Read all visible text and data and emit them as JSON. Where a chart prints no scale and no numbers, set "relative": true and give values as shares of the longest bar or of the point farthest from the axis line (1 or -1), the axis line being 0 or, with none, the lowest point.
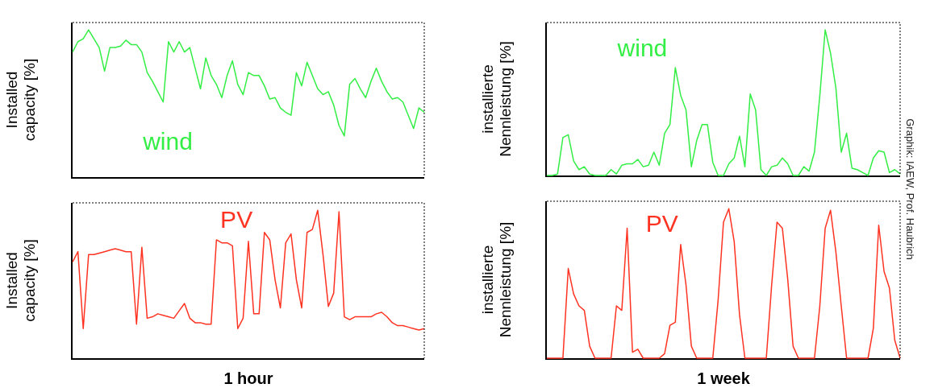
{
  "chart_data": [
    {
      "type": "line",
      "ylabel": "Installed\ncapacity [%]",
      "relative": true,
      "categories": [
        null,
        null,
        null,
        null,
        null,
        null,
        null,
        null,
        null,
        null,
        null,
        null,
        null,
        null,
        null,
        null,
        null,
        null,
        null,
        null,
        null,
        null,
        null,
        null,
        null,
        null,
        null,
        null,
        null,
        null,
        null,
        null,
        null,
        null,
        null,
        null,
        null,
        null,
        null,
        null,
        null,
        null,
        null,
        null,
        null,
        null,
        null,
        null,
        null,
        null,
        null,
        null,
        null,
        null,
        null,
        null,
        null,
        null,
        null,
        null,
        null,
        null,
        null,
        null,
        null,
        null,
        null
      ],
      "series": [
        {
          "name": "wind",
          "color": "#33ee44",
          "values": [
            0.85,
            0.92,
            0.94,
            1,
            0.94,
            0.88,
            0.72,
            0.88,
            0.88,
            0.89,
            0.93,
            0.9,
            0.9,
            0.85,
            0.71,
            0.65,
            0.58,
            0.51,
            0.92,
            0.85,
            0.92,
            0.85,
            0.88,
            0.74,
            0.6,
            0.81,
            0.69,
            0.63,
            0.54,
            0.69,
            0.79,
            0.63,
            0.56,
            0.71,
            0.69,
            0.69,
            0.62,
            0.53,
            0.54,
            0.47,
            0.44,
            0.42,
            0.71,
            0.62,
            0.78,
            0.69,
            0.6,
            0.56,
            0.58,
            0.49,
            0.35,
            0.28,
            0.63,
            0.67,
            0.6,
            0.54,
            0.65,
            0.74,
            0.65,
            0.58,
            0.53,
            0.54,
            0.51,
            0.42,
            0.33,
            0.47,
            0.44
          ]
        }
      ]
    },
    {
      "type": "line",
      "ylabel": "installierte\nNennleistung [%]",
      "relative": true,
      "annotations": [
        "Graphik: IAEW, Prof. Haubrich"
      ],
      "categories": [
        null,
        null,
        null,
        null,
        null,
        null,
        null,
        null,
        null,
        null,
        null,
        null,
        null,
        null,
        null,
        null,
        null,
        null,
        null,
        null,
        null,
        null,
        null,
        null,
        null,
        null,
        null,
        null,
        null,
        null,
        null,
        null,
        null,
        null,
        null,
        null,
        null,
        null,
        null,
        null,
        null,
        null,
        null,
        null,
        null,
        null,
        null,
        null,
        null,
        null,
        null,
        null,
        null,
        null,
        null,
        null,
        null,
        null,
        null,
        null,
        null,
        null,
        null,
        null,
        null,
        null,
        null
      ],
      "series": [
        {
          "name": "wind",
          "color": "#33ee44",
          "values": [
            0,
            0,
            0.01,
            0.26,
            0.28,
            0.1,
            0.04,
            0.06,
            0.01,
            0,
            0,
            0,
            0.04,
            0.01,
            0.07,
            0.08,
            0.08,
            0.11,
            0.06,
            0.07,
            0.16,
            0.07,
            0.29,
            0.35,
            0.74,
            0.55,
            0.45,
            0.06,
            0.24,
            0.35,
            0.35,
            0.09,
            0,
            0,
            0.08,
            0.12,
            0.27,
            0.06,
            0.56,
            0.45,
            0.04,
            0,
            0.06,
            0.07,
            0.12,
            0.08,
            0,
            0,
            0.06,
            0.03,
            0.16,
            0.55,
            1,
            0.84,
            0.6,
            0.16,
            0.29,
            0.05,
            0.04,
            0.02,
            0,
            0.12,
            0.17,
            0.16,
            0.02,
            0.04,
            0.01
          ]
        }
      ]
    },
    {
      "type": "line",
      "ylabel": "Installed\ncapacity [%]",
      "xlabel": "1 hour",
      "relative": true,
      "categories": [
        null,
        null,
        null,
        null,
        null,
        null,
        null,
        null,
        null,
        null,
        null,
        null,
        null,
        null,
        null,
        null,
        null,
        null,
        null,
        null,
        null,
        null,
        null,
        null,
        null,
        null,
        null,
        null,
        null,
        null,
        null,
        null,
        null,
        null,
        null,
        null,
        null,
        null,
        null,
        null,
        null,
        null,
        null,
        null,
        null,
        null,
        null,
        null,
        null,
        null,
        null,
        null,
        null,
        null,
        null,
        null,
        null,
        null,
        null,
        null,
        null,
        null,
        null,
        null,
        null,
        null,
        null
      ],
      "series": [
        {
          "name": "PV",
          "color": "#ff3322",
          "values": [
            0.65,
            0.72,
            0.2,
            0.7,
            0.7,
            0.71,
            0.72,
            0.73,
            0.74,
            0.73,
            0.72,
            0.72,
            0.23,
            0.75,
            0.27,
            0.28,
            0.3,
            0.29,
            0.28,
            0.27,
            0.32,
            0.37,
            0.27,
            0.24,
            0.24,
            0.23,
            0.23,
            0.8,
            0.78,
            0.78,
            0.76,
            0.2,
            0.27,
            0.79,
            0.3,
            0.3,
            0.85,
            0.8,
            0.53,
            0.34,
            0.78,
            0.84,
            0.53,
            0.34,
            0.85,
            0.87,
            1,
            0.7,
            0.35,
            0.44,
            0.99,
            0.28,
            0.26,
            0.28,
            0.28,
            0.28,
            0.28,
            0.3,
            0.31,
            0.28,
            0.24,
            0.22,
            0.22,
            0.21,
            0.2,
            0.19,
            0.2
          ]
        }
      ]
    },
    {
      "type": "line",
      "ylabel": "installierte\nNennleistung [%]",
      "xlabel": "1 week",
      "relative": true,
      "categories": [
        null,
        null,
        null,
        null,
        null,
        null,
        null,
        null,
        null,
        null,
        null,
        null,
        null,
        null,
        null,
        null,
        null,
        null,
        null,
        null,
        null,
        null,
        null,
        null,
        null,
        null,
        null,
        null,
        null,
        null,
        null,
        null,
        null,
        null,
        null,
        null,
        null,
        null,
        null,
        null,
        null,
        null,
        null,
        null,
        null,
        null,
        null,
        null,
        null,
        null,
        null,
        null,
        null,
        null,
        null,
        null,
        null,
        null,
        null,
        null,
        null,
        null,
        null,
        null,
        null,
        null,
        null
      ],
      "series": [
        {
          "name": "PV",
          "color": "#ff3322",
          "values": [
            0,
            0,
            0,
            0,
            0.6,
            0.43,
            0.35,
            0.32,
            0.08,
            0,
            0,
            0,
            0,
            0.35,
            0.32,
            0.87,
            0.04,
            0.06,
            0,
            0,
            0,
            0,
            0.03,
            0.22,
            0.24,
            0.76,
            0.49,
            0.08,
            0,
            0,
            0,
            0,
            0.39,
            0.91,
            1,
            0.78,
            0.29,
            0,
            0,
            0,
            0,
            0,
            0.49,
            0.91,
            0.87,
            0.53,
            0.08,
            0,
            0,
            0,
            0,
            0.35,
            0.87,
            0.99,
            0.71,
            0.35,
            0,
            0,
            0,
            0,
            0,
            0.2,
            0.89,
            0.58,
            0.47,
            0.12,
            0
          ]
        }
      ]
    }
  ]
}
